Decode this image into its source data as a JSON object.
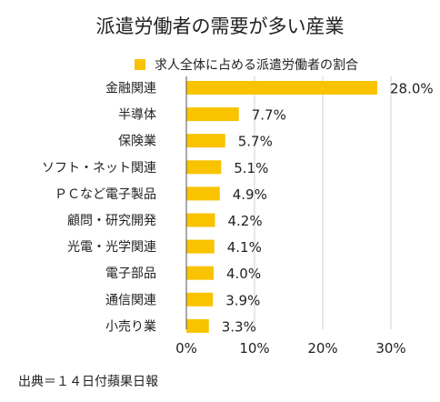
{
  "chart_data": {
    "type": "bar",
    "orientation": "horizontal",
    "title": "派遣労働者の需要が多い産業",
    "categories": [
      "金融関連",
      "半導体",
      "保険業",
      "ソフト・ネット関連",
      "ＰＣなど電子製品",
      "顧問・研究開発",
      "光電・光学関連",
      "電子部品",
      "通信関連",
      "小売り業"
    ],
    "series": [
      {
        "name": "求人全体に占める派遣労働者の割合",
        "values": [
          28.0,
          7.7,
          5.7,
          5.1,
          4.9,
          4.2,
          4.1,
          4.0,
          3.9,
          3.3
        ],
        "labels": [
          "28.0%",
          "7.7%",
          "5.7%",
          "5.1%",
          "4.9%",
          "4.2%",
          "4.1%",
          "4.0%",
          "3.9%",
          "3.3%"
        ]
      }
    ],
    "xlim": [
      0,
      30
    ],
    "x_ticks": [
      "0%",
      "10%",
      "20%",
      "30%"
    ],
    "x_tick_values": [
      0,
      10,
      20,
      30
    ],
    "grid": true,
    "legend_position": "top-right",
    "bar_color": "#F9C300",
    "source": "出典＝１４日付蘋果日報"
  }
}
